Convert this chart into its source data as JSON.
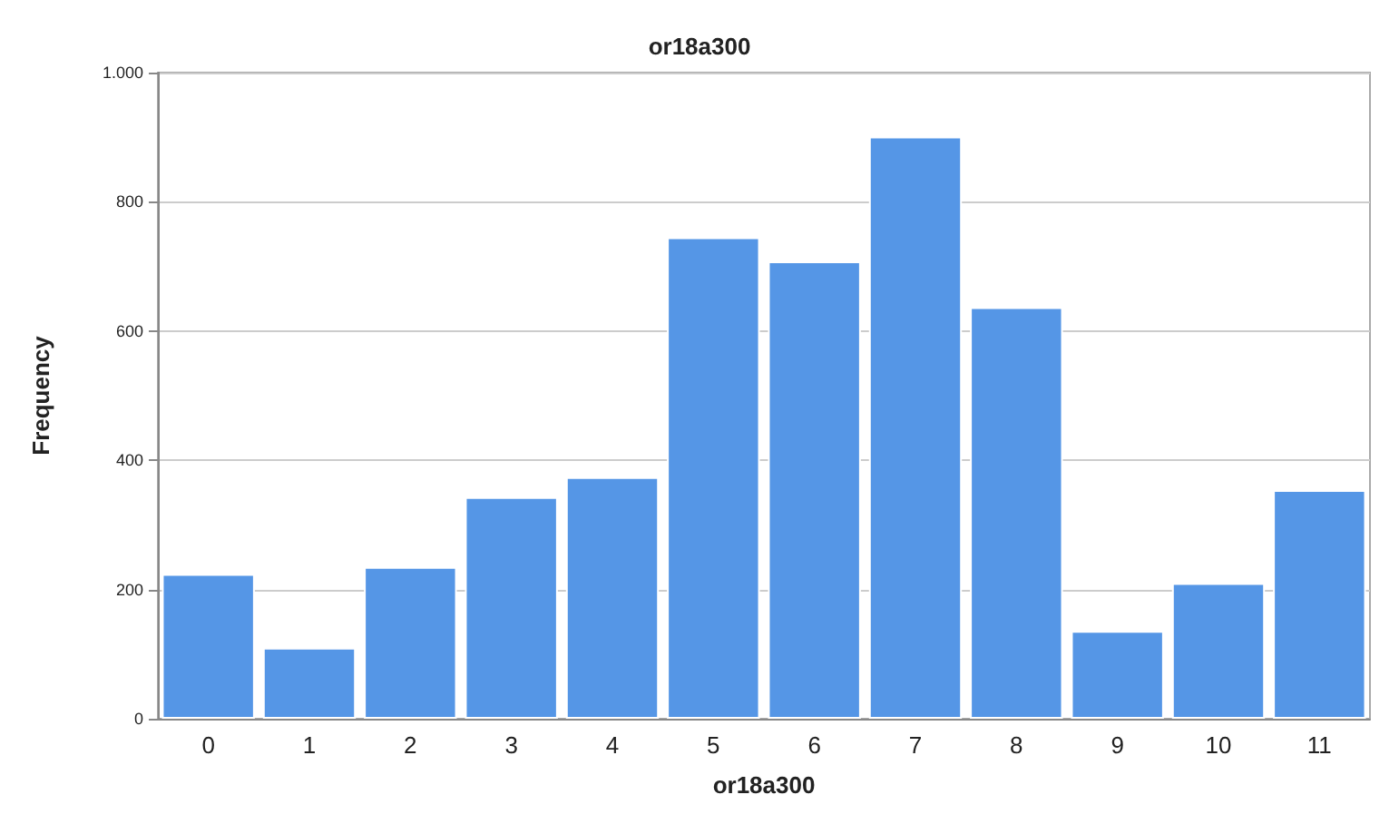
{
  "chart_data": {
    "type": "bar",
    "title": "or18a300",
    "xlabel": "or18a300",
    "ylabel": "Frequency",
    "categories": [
      "0",
      "1",
      "2",
      "3",
      "4",
      "5",
      "6",
      "7",
      "8",
      "9",
      "10",
      "11"
    ],
    "values": [
      224,
      110,
      235,
      343,
      374,
      745,
      708,
      901,
      637,
      136,
      210,
      354
    ],
    "color": "#5596e6",
    "ylim": [
      0,
      1000
    ],
    "yticks": [
      0,
      200,
      400,
      600,
      800,
      {
        "value": 1000,
        "label": "1.000"
      }
    ],
    "grid": "y"
  }
}
